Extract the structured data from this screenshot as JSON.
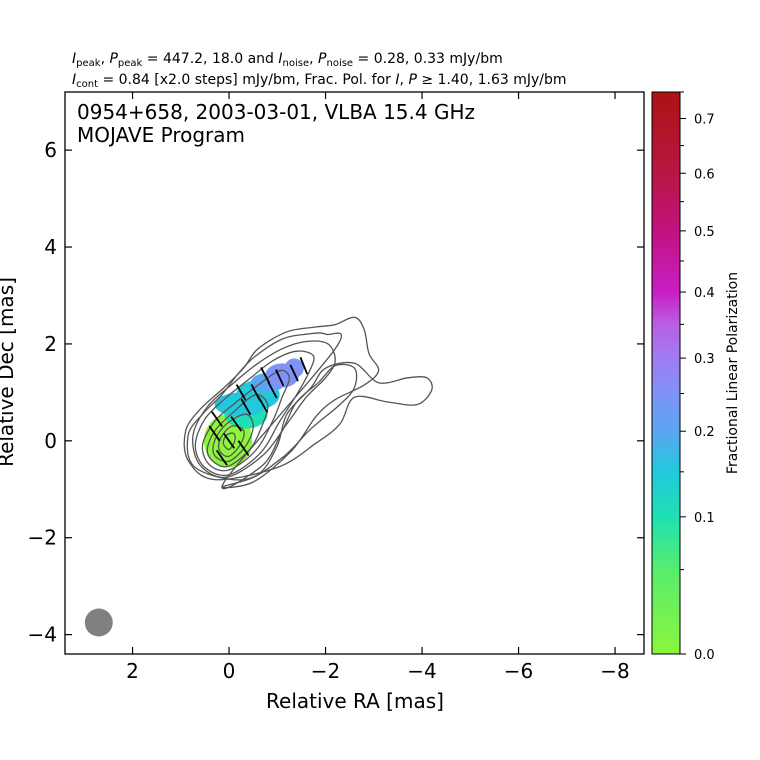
{
  "header": {
    "line1_parts": [
      {
        "t": "I",
        "s": "it"
      },
      {
        "t": "peak",
        "s": "sub"
      },
      {
        "t": ", "
      },
      {
        "t": "P",
        "s": "it"
      },
      {
        "t": "peak",
        "s": "sub"
      },
      {
        "t": " = 447.2, 18.0 and "
      },
      {
        "t": "I",
        "s": "it"
      },
      {
        "t": "noise",
        "s": "sub"
      },
      {
        "t": ", "
      },
      {
        "t": "P",
        "s": "it"
      },
      {
        "t": "noise",
        "s": "sub"
      },
      {
        "t": " = 0.28, 0.33 mJy/bm"
      }
    ],
    "line2_parts": [
      {
        "t": "I",
        "s": "it"
      },
      {
        "t": "cont",
        "s": "sub"
      },
      {
        "t": " = 0.84 [x2.0 steps] mJy/bm, Frac. Pol. for "
      },
      {
        "t": "I",
        "s": "it"
      },
      {
        "t": ", "
      },
      {
        "t": "P",
        "s": "it"
      },
      {
        "t": " ≥ 1.40, 1.63 mJy/bm"
      }
    ]
  },
  "chart_data": {
    "type": "heatmap",
    "title_lines": [
      "0954+658, 2003-03-01, VLBA 15.4 GHz",
      "MOJAVE Program"
    ],
    "xlabel": "Relative RA [mas]",
    "ylabel": "Relative Dec [mas]",
    "xlim": [
      3.4,
      -8.6
    ],
    "ylim": [
      -4.4,
      7.2
    ],
    "x_ticks": [
      2,
      0,
      -2,
      -4,
      -6,
      -8
    ],
    "y_ticks": [
      -4,
      -2,
      0,
      2,
      4,
      6
    ],
    "x_tick_labels": [
      "2",
      "0",
      "−2",
      "−4",
      "−6",
      "−8"
    ],
    "y_tick_labels": [
      "−4",
      "−2",
      "0",
      "2",
      "4",
      "6"
    ],
    "colorbar": {
      "label": "Fractional Linear Polarization",
      "range": [
        0.0,
        0.75
      ],
      "scale": "power-stretched",
      "tick_values": [
        0.0,
        0.1,
        0.2,
        0.3,
        0.4,
        0.5,
        0.6,
        0.7
      ],
      "tick_labels": [
        "0.0",
        "0.1",
        "0.2",
        "0.3",
        "0.4",
        "0.5",
        "0.6",
        "0.7"
      ],
      "colors": [
        {
          "v": 0.0,
          "c": "#8cf53c"
        },
        {
          "v": 0.05,
          "c": "#57ed6e"
        },
        {
          "v": 0.1,
          "c": "#1ee0b3"
        },
        {
          "v": 0.15,
          "c": "#22c9dc"
        },
        {
          "v": 0.2,
          "c": "#5aa6f2"
        },
        {
          "v": 0.25,
          "c": "#7f93f6"
        },
        {
          "v": 0.3,
          "c": "#a07cf2"
        },
        {
          "v": 0.35,
          "c": "#b95fe3"
        },
        {
          "v": 0.4,
          "c": "#c81ec6"
        },
        {
          "v": 0.5,
          "c": "#c1127e"
        },
        {
          "v": 0.6,
          "c": "#b71744"
        },
        {
          "v": 0.75,
          "c": "#ad1212"
        }
      ]
    },
    "contour_color": "#555555",
    "contours": [
      {
        "level": 1,
        "points": [
          [
            0.15,
            -0.95
          ],
          [
            -0.6,
            -0.7
          ],
          [
            -1.0,
            -0.1
          ],
          [
            -1.2,
            0.55
          ],
          [
            -1.7,
            1.1
          ],
          [
            -2.0,
            1.5
          ],
          [
            -2.6,
            1.6
          ],
          [
            -3.1,
            1.2
          ],
          [
            -3.7,
            1.3
          ],
          [
            -4.1,
            1.3
          ],
          [
            -4.2,
            1.05
          ],
          [
            -3.9,
            0.75
          ],
          [
            -3.3,
            0.8
          ],
          [
            -2.6,
            0.9
          ],
          [
            -2.3,
            0.35
          ],
          [
            -1.8,
            -0.05
          ],
          [
            -1.0,
            -0.55
          ],
          [
            0.3,
            -0.8
          ],
          [
            0.85,
            -0.4
          ],
          [
            0.9,
            0.2
          ],
          [
            0.6,
            0.65
          ],
          [
            0.1,
            1.1
          ],
          [
            -0.3,
            1.5
          ],
          [
            -0.6,
            1.9
          ],
          [
            -1.2,
            2.25
          ],
          [
            -1.8,
            2.35
          ],
          [
            -2.2,
            2.4
          ],
          [
            -2.6,
            2.55
          ],
          [
            -2.8,
            2.3
          ],
          [
            -2.9,
            1.8
          ],
          [
            -3.1,
            1.45
          ],
          [
            -2.8,
            1.15
          ],
          [
            -2.2,
            0.85
          ],
          [
            -1.8,
            0.5
          ],
          [
            -1.3,
            -0.2
          ],
          [
            -0.5,
            -0.85
          ]
        ]
      },
      {
        "level": 2,
        "points": [
          [
            0.1,
            -0.85
          ],
          [
            -0.7,
            -0.5
          ],
          [
            -1.1,
            0.2
          ],
          [
            -1.4,
            0.8
          ],
          [
            -1.85,
            1.2
          ],
          [
            -2.2,
            1.55
          ],
          [
            -2.6,
            1.5
          ],
          [
            -2.6,
            1.1
          ],
          [
            -2.3,
            0.75
          ],
          [
            -1.7,
            0.25
          ],
          [
            -1.1,
            -0.35
          ],
          [
            -0.3,
            -0.8
          ],
          [
            0.7,
            -0.55
          ],
          [
            0.85,
            0.1
          ],
          [
            0.55,
            0.55
          ],
          [
            0.15,
            0.95
          ],
          [
            -0.2,
            1.4
          ],
          [
            -0.55,
            1.75
          ],
          [
            -1.1,
            2.1
          ],
          [
            -1.6,
            2.2
          ],
          [
            -2.0,
            2.2
          ],
          [
            -2.2,
            1.9
          ]
        ]
      },
      {
        "level": 4,
        "points": [
          [
            0.05,
            -0.75
          ],
          [
            -0.7,
            -0.3
          ],
          [
            -1.2,
            0.35
          ],
          [
            -1.6,
            0.9
          ],
          [
            -2.0,
            1.3
          ],
          [
            -2.2,
            1.65
          ],
          [
            -2.05,
            2.0
          ],
          [
            -1.6,
            2.05
          ],
          [
            -1.1,
            1.9
          ],
          [
            -0.6,
            1.6
          ],
          [
            -0.1,
            1.2
          ],
          [
            0.45,
            0.7
          ],
          [
            0.75,
            0.1
          ],
          [
            0.6,
            -0.5
          ]
        ]
      },
      {
        "level": 8,
        "points": [
          [
            0.0,
            -0.7
          ],
          [
            -0.65,
            -0.25
          ],
          [
            -1.05,
            0.4
          ],
          [
            -1.4,
            0.95
          ],
          [
            -1.65,
            1.4
          ],
          [
            -1.75,
            1.75
          ],
          [
            -1.4,
            1.85
          ],
          [
            -0.9,
            1.65
          ],
          [
            -0.45,
            1.3
          ],
          [
            0.05,
            0.9
          ],
          [
            0.5,
            0.45
          ],
          [
            0.7,
            -0.1
          ],
          [
            0.5,
            -0.55
          ]
        ]
      },
      {
        "level": 16,
        "points": [
          [
            0.0,
            -0.6
          ],
          [
            -0.55,
            -0.2
          ],
          [
            -0.9,
            0.4
          ],
          [
            -1.1,
            0.9
          ],
          [
            -1.25,
            1.3
          ],
          [
            -1.05,
            1.45
          ],
          [
            -0.6,
            1.15
          ],
          [
            -0.15,
            0.8
          ],
          [
            0.3,
            0.4
          ],
          [
            0.55,
            -0.1
          ],
          [
            0.4,
            -0.5
          ]
        ]
      },
      {
        "level": 32,
        "points": [
          [
            0.0,
            -0.52
          ],
          [
            -0.45,
            -0.15
          ],
          [
            -0.7,
            0.35
          ],
          [
            -0.8,
            0.75
          ],
          [
            -0.55,
            0.95
          ],
          [
            -0.1,
            0.6
          ],
          [
            0.3,
            0.2
          ],
          [
            0.45,
            -0.2
          ],
          [
            0.3,
            -0.45
          ]
        ]
      },
      {
        "level": 64,
        "points": [
          [
            0.0,
            -0.42
          ],
          [
            -0.35,
            -0.1
          ],
          [
            -0.5,
            0.3
          ],
          [
            -0.35,
            0.55
          ],
          [
            0.05,
            0.35
          ],
          [
            0.3,
            0.0
          ],
          [
            0.3,
            -0.3
          ]
        ]
      },
      {
        "level": 128,
        "points": [
          [
            0.0,
            -0.32
          ],
          [
            -0.25,
            -0.05
          ],
          [
            -0.3,
            0.22
          ],
          [
            -0.05,
            0.3
          ],
          [
            0.18,
            0.05
          ],
          [
            0.2,
            -0.2
          ]
        ]
      },
      {
        "level": 256,
        "points": [
          [
            0.0,
            -0.18
          ],
          [
            -0.12,
            0.0
          ],
          [
            -0.1,
            0.15
          ],
          [
            0.05,
            0.12
          ],
          [
            0.12,
            -0.05
          ]
        ]
      }
    ],
    "pol_blobs": [
      {
        "x": 0.02,
        "y": 0.0,
        "rx": 0.5,
        "ry": 0.55,
        "frac": 0.03
      },
      {
        "x": -0.1,
        "y": 0.2,
        "rx": 0.35,
        "ry": 0.45,
        "frac": 0.05
      },
      {
        "x": -0.35,
        "y": 0.55,
        "rx": 0.45,
        "ry": 0.3,
        "frac": 0.14
      },
      {
        "x": -0.25,
        "y": 0.75,
        "rx": 0.55,
        "ry": 0.25,
        "frac": 0.18
      },
      {
        "x": -0.6,
        "y": 0.95,
        "rx": 0.45,
        "ry": 0.3,
        "frac": 0.2
      },
      {
        "x": -0.8,
        "y": 1.2,
        "rx": 0.35,
        "ry": 0.2,
        "frac": 0.25
      },
      {
        "x": -1.1,
        "y": 1.35,
        "rx": 0.35,
        "ry": 0.25,
        "frac": 0.27
      },
      {
        "x": -1.35,
        "y": 1.5,
        "rx": 0.2,
        "ry": 0.2,
        "frac": 0.26
      }
    ],
    "evpa_ticks": [
      {
        "x": 0.0,
        "y": 0.0,
        "angle_deg": 125
      },
      {
        "x": 0.3,
        "y": 0.15,
        "angle_deg": 125
      },
      {
        "x": -0.3,
        "y": -0.15,
        "angle_deg": 125
      },
      {
        "x": 0.15,
        "y": -0.35,
        "angle_deg": 125
      },
      {
        "x": -0.15,
        "y": 0.35,
        "angle_deg": 125
      },
      {
        "x": 0.25,
        "y": 0.45,
        "angle_deg": 125
      },
      {
        "x": -0.35,
        "y": 0.7,
        "angle_deg": 120
      },
      {
        "x": -0.7,
        "y": 0.75,
        "angle_deg": 120
      },
      {
        "x": -0.55,
        "y": 1.0,
        "angle_deg": 118
      },
      {
        "x": -0.9,
        "y": 1.05,
        "angle_deg": 118
      },
      {
        "x": -0.25,
        "y": 1.0,
        "angle_deg": 120
      },
      {
        "x": -1.05,
        "y": 1.3,
        "angle_deg": 115
      },
      {
        "x": -1.35,
        "y": 1.4,
        "angle_deg": 115
      },
      {
        "x": -0.75,
        "y": 1.35,
        "angle_deg": 118
      },
      {
        "x": -1.55,
        "y": 1.55,
        "angle_deg": 112
      }
    ],
    "beam": {
      "x": 2.7,
      "y": -3.75,
      "major_mas": 0.58,
      "minor_mas": 0.58,
      "color": "#808080"
    }
  }
}
